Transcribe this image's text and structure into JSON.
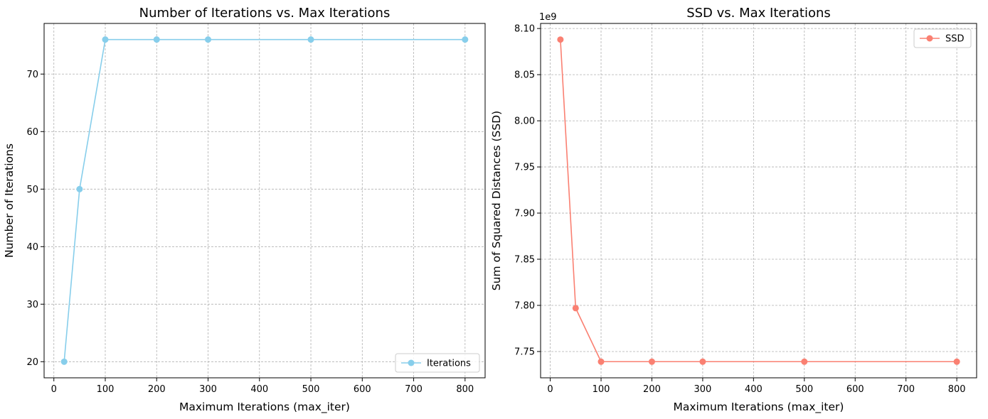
{
  "chart_data": [
    {
      "type": "line",
      "title": "Number of Iterations vs. Max Iterations",
      "xlabel": "Maximum Iterations (max_iter)",
      "ylabel": "Number of Iterations",
      "x": [
        20,
        50,
        100,
        200,
        300,
        500,
        800
      ],
      "series": [
        {
          "name": "Iterations",
          "values": [
            20,
            50,
            76,
            76,
            76,
            76,
            76
          ],
          "color": "#87CEEB"
        }
      ],
      "xlim": [
        -19,
        839
      ],
      "ylim": [
        17.2,
        78.8
      ],
      "xticks": [
        0,
        100,
        200,
        300,
        400,
        500,
        600,
        700,
        800
      ],
      "yticks": [
        20,
        30,
        40,
        50,
        60,
        70
      ],
      "ytick_labels": [
        "20",
        "30",
        "40",
        "50",
        "60",
        "70"
      ],
      "offset_text": "",
      "grid": true,
      "legend": "lower right"
    },
    {
      "type": "line",
      "title": "SSD vs. Max Iterations",
      "xlabel": "Maximum Iterations (max_iter)",
      "ylabel": "Sum of Squared Distances (SSD)",
      "x": [
        20,
        50,
        100,
        200,
        300,
        500,
        800
      ],
      "series": [
        {
          "name": "SSD",
          "values": [
            8088000000.0,
            7797000000.0,
            7739000000.0,
            7739000000.0,
            7739000000.0,
            7739000000.0,
            7739000000.0
          ],
          "color": "#FA8072"
        }
      ],
      "xlim": [
        -19,
        839
      ],
      "ylim": [
        7721500000.0,
        8105500000.0
      ],
      "xticks": [
        0,
        100,
        200,
        300,
        400,
        500,
        600,
        700,
        800
      ],
      "yticks": [
        7750000000.0,
        7800000000.0,
        7850000000.0,
        7900000000.0,
        7950000000.0,
        8000000000.0,
        8050000000.0,
        8100000000.0
      ],
      "ytick_labels": [
        "7.75",
        "7.80",
        "7.85",
        "7.90",
        "7.95",
        "8.00",
        "8.05",
        "8.10"
      ],
      "offset_text": "1e9",
      "grid": true,
      "legend": "upper right"
    }
  ]
}
